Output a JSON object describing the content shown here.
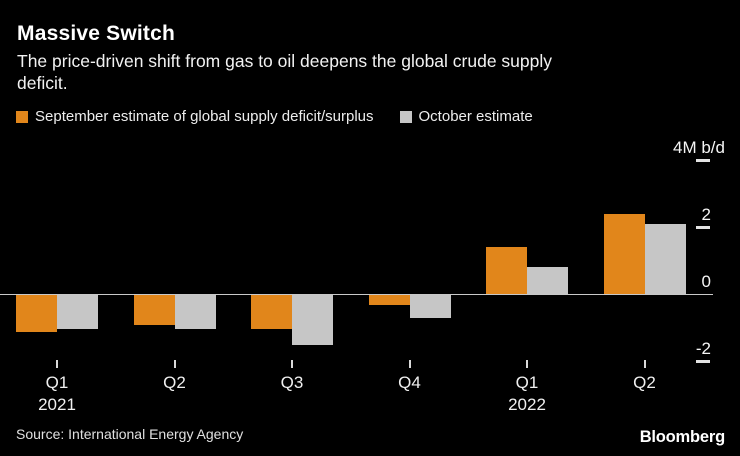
{
  "header": {
    "title": "Massive Switch",
    "subtitle_lines": [
      "The price-driven shift from gas to oil deepens the global crude supply",
      "deficit."
    ]
  },
  "legend": [
    {
      "label": "September estimate of global supply deficit/surplus",
      "color": "#E1861B"
    },
    {
      "label": "October estimate",
      "color": "#C6C6C6"
    }
  ],
  "chart_data": {
    "type": "bar",
    "title": "Massive Switch",
    "subtitle": "The price-driven shift from gas to oil deepens the global crude supply deficit.",
    "unit": "M b/d",
    "categories": [
      "Q1 2021",
      "Q2 2021",
      "Q3 2021",
      "Q4 2021",
      "Q1 2022",
      "Q2 2022"
    ],
    "series": [
      {
        "name": "September estimate of global supply deficit/surplus",
        "color": "#E1861B",
        "values": [
          -1.1,
          -0.9,
          -1.0,
          -0.3,
          1.4,
          2.4
        ]
      },
      {
        "name": "October estimate",
        "color": "#C6C6C6",
        "values": [
          -1.0,
          -1.0,
          -1.5,
          -0.7,
          0.8,
          2.1
        ]
      }
    ],
    "ylim": [
      -2.7,
      4.2
    ],
    "yticks": [
      {
        "value": 4,
        "label": "4M b/d"
      },
      {
        "value": 2,
        "label": "2"
      },
      {
        "value": 0,
        "label": "0"
      },
      {
        "value": -2,
        "label": "-2"
      }
    ],
    "x_ticks": [
      {
        "quarter": "Q1",
        "year": "2021"
      },
      {
        "quarter": "Q2"
      },
      {
        "quarter": "Q3"
      },
      {
        "quarter": "Q4"
      },
      {
        "quarter": "Q1",
        "year": "2022"
      },
      {
        "quarter": "Q2"
      }
    ],
    "legend_position": "top",
    "grid": false
  },
  "footer": {
    "source": "Source: International Energy Agency",
    "brand": "Bloomberg"
  },
  "colors": {
    "background": "#000000",
    "title_text": "#FFFFFF",
    "body_text": "#F2F2F2",
    "axis": "#C9C9C9",
    "bar_september": "#E1861B",
    "bar_october": "#C6C6C6"
  }
}
